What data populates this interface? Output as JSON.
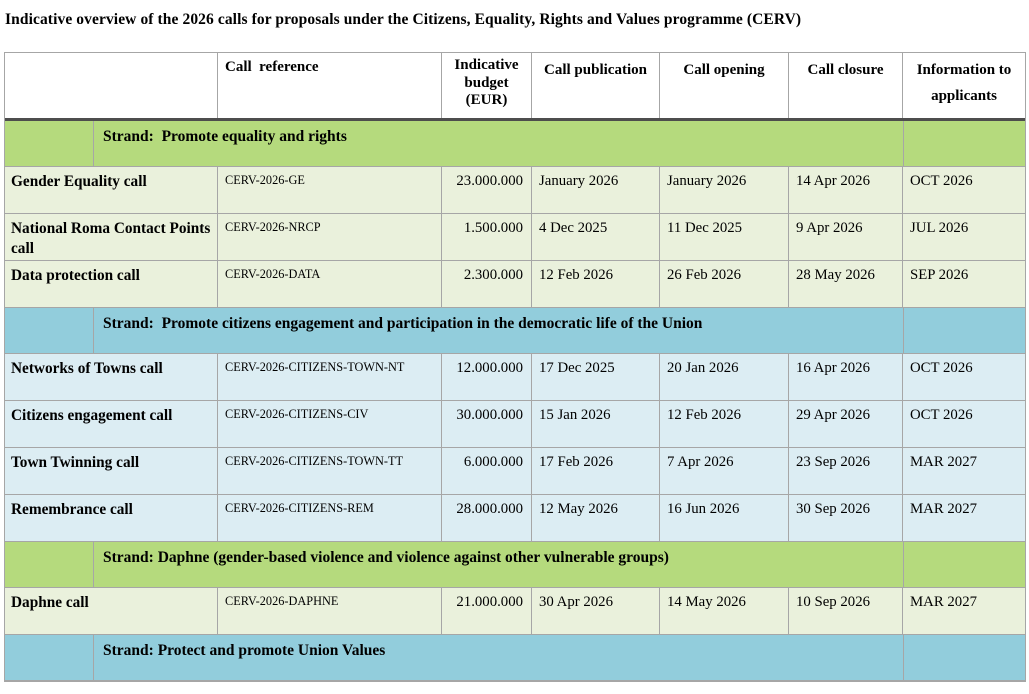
{
  "title": "Indicative overview of the 2026 calls for proposals under the Citizens, Equality, Rights and Values programme (CERV)",
  "table": {
    "headers": [
      "",
      "Call  reference",
      "Indicative budget (EUR)",
      "Call publication",
      "Call opening",
      "Call closure",
      "Information to applicants"
    ]
  },
  "sections": [
    {
      "strand": "Strand:  Promote equality and rights",
      "theme": "green",
      "rows": [
        {
          "name": "Gender Equality call",
          "reference": "CERV-2026-GE",
          "budget": "23.000.000",
          "publication": "January 2026",
          "opening": "January 2026",
          "closure": "14 Apr 2026",
          "info": "OCT 2026"
        },
        {
          "name": "National Roma Contact Points call",
          "reference": "CERV-2026-NRCP",
          "budget": "1.500.000",
          "publication": "4 Dec 2025",
          "opening": "11 Dec 2025",
          "closure": "9 Apr 2026",
          "info": "JUL 2026"
        },
        {
          "name": "Data protection call",
          "reference": "CERV-2026-DATA",
          "budget": "2.300.000",
          "publication": "12 Feb 2026",
          "opening": "26 Feb 2026",
          "closure": "28 May 2026",
          "info": "SEP 2026"
        }
      ]
    },
    {
      "strand": "Strand:  Promote citizens engagement and participation in the democratic life of the Union",
      "theme": "blue",
      "rows": [
        {
          "name": "Networks of Towns call",
          "reference": "CERV-2026-CITIZENS-TOWN-NT",
          "budget": "12.000.000",
          "publication": "17 Dec 2025",
          "opening": "20 Jan 2026",
          "closure": "16 Apr 2026",
          "info": "OCT 2026"
        },
        {
          "name": "Citizens engagement call",
          "reference": "CERV-2026-CITIZENS-CIV",
          "budget": "30.000.000",
          "publication": "15 Jan 2026",
          "opening": "12 Feb 2026",
          "closure": "29 Apr 2026",
          "info": "OCT 2026"
        },
        {
          "name": "Town Twinning call",
          "reference": "CERV-2026-CITIZENS-TOWN-TT",
          "budget": "6.000.000",
          "publication": "17 Feb 2026",
          "opening": "7 Apr 2026",
          "closure": "23 Sep 2026",
          "info": "MAR 2027"
        },
        {
          "name": "Remembrance call",
          "reference": "CERV-2026-CITIZENS-REM",
          "budget": "28.000.000",
          "publication": "12 May 2026",
          "opening": "16 Jun 2026",
          "closure": "30 Sep 2026",
          "info": "MAR 2027"
        }
      ]
    },
    {
      "strand": "Strand: Daphne (gender-based violence and violence against other vulnerable groups)",
      "theme": "green",
      "rows": [
        {
          "name": "Daphne call",
          "reference": "CERV-2026-DAPHNE",
          "budget": "21.000.000",
          "publication": "30 Apr 2026",
          "opening": "14 May 2026",
          "closure": "10 Sep 2026",
          "info": "MAR 2027"
        }
      ]
    },
    {
      "strand": "Strand: Protect and promote Union Values",
      "theme": "blue",
      "rows": []
    }
  ],
  "colors": {
    "strand_green": "#b5da7d",
    "strand_blue": "#92cddc",
    "row_green": "#eaf1dc",
    "row_blue": "#dcedf3",
    "border_light": "#a6a6a6",
    "border_dark": "#4d4d4d"
  }
}
